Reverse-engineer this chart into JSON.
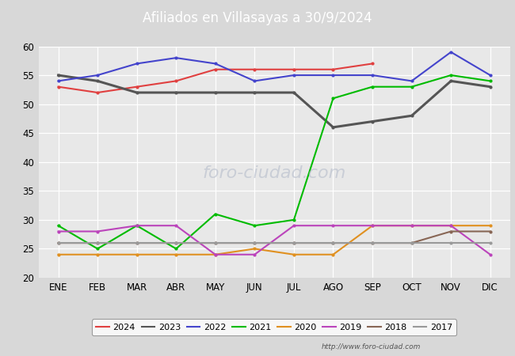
{
  "title": "Afiliados en Villasayas a 30/9/2024",
  "title_color": "white",
  "title_bg_color": "#5b7fc4",
  "ylim": [
    20,
    60
  ],
  "yticks": [
    20,
    25,
    30,
    35,
    40,
    45,
    50,
    55,
    60
  ],
  "months": [
    "ENE",
    "FEB",
    "MAR",
    "ABR",
    "MAY",
    "JUN",
    "JUL",
    "AGO",
    "SEP",
    "OCT",
    "NOV",
    "DIC"
  ],
  "background_color": "#d8d8d8",
  "plot_bg_color": "#e8e8e8",
  "url": "http://www.foro-ciudad.com",
  "series": {
    "2024": {
      "color": "#e04040",
      "data": [
        53,
        52,
        53,
        54,
        56,
        56,
        56,
        56,
        57,
        null,
        null,
        null
      ],
      "linewidth": 1.5
    },
    "2023": {
      "color": "#555555",
      "data": [
        55,
        54,
        52,
        52,
        52,
        52,
        52,
        46,
        47,
        48,
        54,
        53
      ],
      "linewidth": 2.2
    },
    "2022": {
      "color": "#4444cc",
      "data": [
        54,
        55,
        57,
        58,
        57,
        54,
        55,
        55,
        55,
        54,
        59,
        55
      ],
      "linewidth": 1.5
    },
    "2021": {
      "color": "#00bb00",
      "data": [
        29,
        25,
        29,
        25,
        31,
        29,
        30,
        51,
        53,
        53,
        55,
        54
      ],
      "linewidth": 1.5
    },
    "2020": {
      "color": "#e09020",
      "data": [
        24,
        24,
        24,
        24,
        24,
        25,
        24,
        24,
        29,
        29,
        29,
        29
      ],
      "linewidth": 1.5
    },
    "2019": {
      "color": "#bb44bb",
      "data": [
        28,
        28,
        29,
        29,
        24,
        24,
        29,
        29,
        29,
        29,
        29,
        24
      ],
      "linewidth": 1.5
    },
    "2018": {
      "color": "#886655",
      "data": [
        26,
        26,
        26,
        26,
        26,
        26,
        26,
        26,
        26,
        26,
        28,
        28
      ],
      "linewidth": 1.5
    },
    "2017": {
      "color": "#999999",
      "data": [
        26,
        26,
        26,
        26,
        26,
        26,
        26,
        26,
        26,
        26,
        26,
        26
      ],
      "linewidth": 1.5
    }
  },
  "legend_order": [
    "2024",
    "2023",
    "2022",
    "2021",
    "2020",
    "2019",
    "2018",
    "2017"
  ]
}
